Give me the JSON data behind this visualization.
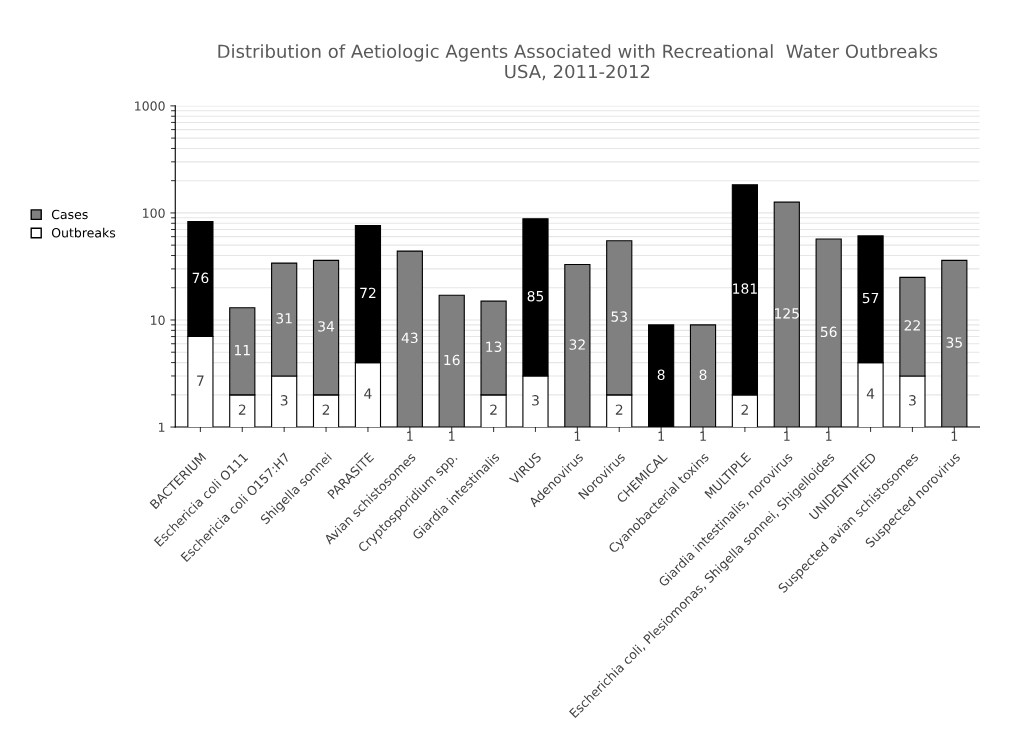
{
  "chart_data": {
    "type": "bar",
    "title": "Distribution of Aetiologic Agents Associated with Recreational  Water Outbreaks\nUSA, 2011-2012",
    "stacked": true,
    "log": "y",
    "ylim": [
      1,
      1000
    ],
    "yticks": [
      1,
      10,
      100,
      1000
    ],
    "grid": "y",
    "legend": "left",
    "data_labels": true,
    "categories": [
      "BACTERIUM",
      "Eschericia coli O111",
      "Eschericia coli O157:H7",
      "Shigella sonnei",
      "PARASITE",
      "Avian schistosomes",
      "Cryptosporidium spp.",
      "Giardia intestinalis",
      "VIRUS",
      "Adenovirus",
      "Norovirus",
      "CHEMICAL",
      "Cyanobacterial toxins",
      "MULTIPLE",
      "Giardia intestinalis, norovirus",
      "Escherichia coli, Plesiomonas, Shigella sonnei, Shigelloides",
      "UNIDENTIFIED",
      "Suspected avian schistosomes",
      "Suspected norovirus"
    ],
    "series": [
      {
        "name": "Outbreaks",
        "color": "#ffffff",
        "values": [
          7,
          2,
          3,
          2,
          4,
          1,
          1,
          2,
          3,
          1,
          2,
          1,
          1,
          2,
          1,
          1,
          4,
          3,
          1
        ]
      },
      {
        "name": "Cases",
        "color": "#808080",
        "values": [
          76,
          11,
          31,
          34,
          72,
          43,
          16,
          13,
          85,
          32,
          53,
          8,
          8,
          181,
          125,
          56,
          57,
          22,
          35
        ],
        "colors": [
          "#000000",
          "#808080",
          "#808080",
          "#808080",
          "#000000",
          "#808080",
          "#808080",
          "#808080",
          "#000000",
          "#808080",
          "#808080",
          "#000000",
          "#808080",
          "#000000",
          "#808080",
          "#808080",
          "#000000",
          "#808080",
          "#808080"
        ]
      }
    ]
  }
}
